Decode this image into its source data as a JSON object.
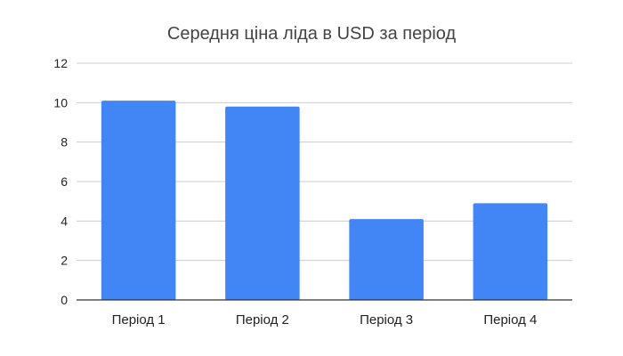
{
  "chart_data": {
    "type": "bar",
    "title": "Середня ціна ліда в USD за період",
    "xlabel": "",
    "ylabel": "",
    "categories": [
      "Період 1",
      "Період 2",
      "Період 3",
      "Період 4"
    ],
    "values": [
      10.1,
      9.8,
      4.1,
      4.9
    ],
    "ylim": [
      0,
      12
    ],
    "yticks": [
      0,
      2,
      4,
      6,
      8,
      10,
      12
    ],
    "grid": true,
    "legend": "none",
    "bar_color": "#4285f4"
  }
}
